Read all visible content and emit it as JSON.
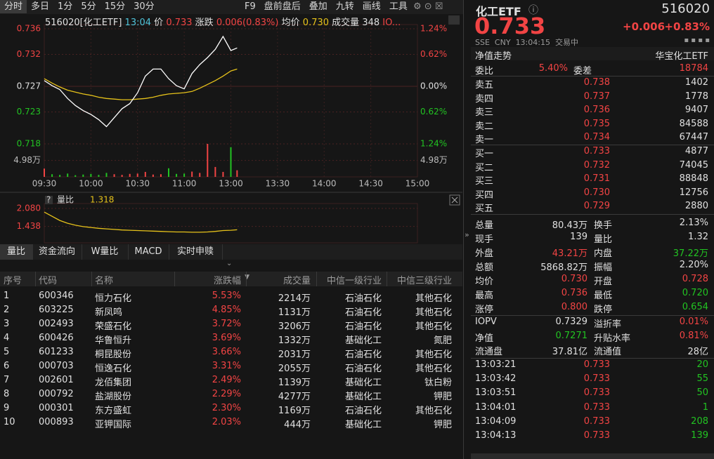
{
  "toolbar": {
    "periods": [
      "分时",
      "多日",
      "1分",
      "5分",
      "15分",
      "30分"
    ],
    "tools": [
      "F9",
      "盘前盘后",
      "叠加",
      "九转",
      "画线",
      "工具"
    ]
  },
  "quote_header": {
    "symbol": "516020[化工ETF]",
    "time": "13:04",
    "price_label": "价",
    "price": "0.733",
    "change_label": "涨跌",
    "change": "0.006(0.83%)",
    "avg_label": "均价",
    "avg": "0.730",
    "volume_label": "成交量",
    "volume": "348",
    "extra": "IO..."
  },
  "intraday": {
    "times": [
      "09:30",
      "09:35",
      "09:40",
      "09:45",
      "09:50",
      "09:55",
      "10:00",
      "10:05",
      "10:10",
      "10:15",
      "10:20",
      "10:25",
      "10:30",
      "10:35",
      "10:40",
      "10:45",
      "10:50",
      "10:55",
      "11:00",
      "11:05",
      "11:10",
      "11:15",
      "11:20",
      "11:25",
      "11:30",
      "13:04"
    ],
    "price": [
      0.7279,
      0.7271,
      0.7265,
      0.7251,
      0.724,
      0.7232,
      0.7226,
      0.7218,
      0.7207,
      0.7221,
      0.7235,
      0.7243,
      0.726,
      0.7286,
      0.7297,
      0.7297,
      0.7282,
      0.7271,
      0.7266,
      0.729,
      0.7304,
      0.7315,
      0.7328,
      0.7348,
      0.7326,
      0.733
    ],
    "avg": [
      0.7282,
      0.7275,
      0.7269,
      0.7264,
      0.7261,
      0.7258,
      0.7256,
      0.7253,
      0.7251,
      0.725,
      0.7249,
      0.7249,
      0.725,
      0.7251,
      0.7253,
      0.7256,
      0.7258,
      0.7259,
      0.726,
      0.7262,
      0.7267,
      0.7273,
      0.7279,
      0.7286,
      0.7294,
      0.7297
    ],
    "volume": [
      2.5,
      0.8,
      0.6,
      1.0,
      0.5,
      0.7,
      0.9,
      0.6,
      1.2,
      0.8,
      0.6,
      0.9,
      1.0,
      1.5,
      0.7,
      0.8,
      2.6,
      0.9,
      1.0,
      1.6,
      1.2,
      10.0,
      3.0,
      1.5,
      9.0,
      2.0
    ],
    "price_color": "#ffffff",
    "avg_color": "#e6c21a",
    "ylim": [
      0.718,
      0.736
    ],
    "yticks": [
      0.736,
      0.732,
      0.727,
      0.723,
      0.718
    ],
    "pct_ticks": [
      "1.24%",
      "0.62%",
      "0.00%",
      "0.62%",
      "1.24%"
    ],
    "volume_ylim": [
      0,
      10
    ],
    "volume_tick": {
      "value": 4.98,
      "label": "4.98万"
    },
    "xticks": [
      "09:30",
      "10:00",
      "10:30",
      "11:00",
      "13:00",
      "13:30",
      "14:00",
      "14:30",
      "15:00"
    ]
  },
  "ratio": {
    "help": "?",
    "label": "量比",
    "value": "1.318",
    "color": "#e6c21a",
    "values": [
      1.95,
      1.8,
      1.65,
      1.55,
      1.48,
      1.43,
      1.4,
      1.37,
      1.35,
      1.33,
      1.31,
      1.3,
      1.29,
      1.28,
      1.27,
      1.26,
      1.25,
      1.24,
      1.24,
      1.23,
      1.23,
      1.24,
      1.26,
      1.29,
      1.3,
      1.318
    ],
    "ylim": [
      0.85,
      2.08
    ],
    "yticks": [
      {
        "value": 2.08,
        "label": "2.080"
      },
      {
        "value": 1.438,
        "label": "1.438"
      }
    ]
  },
  "tabs": [
    "量比",
    "资金流向",
    "W量比",
    "MACD",
    "实时申赎"
  ],
  "table": {
    "headers": [
      "序号",
      "代码",
      "名称",
      "涨跌幅",
      "成交量",
      "中信一级行业",
      "中信三级行业"
    ],
    "rows": [
      [
        "1",
        "600346",
        "恒力石化",
        "5.53%",
        "2214万",
        "石油石化",
        "其他石化"
      ],
      [
        "2",
        "603225",
        "新凤鸣",
        "4.85%",
        "1131万",
        "石油石化",
        "其他石化"
      ],
      [
        "3",
        "002493",
        "荣盛石化",
        "3.72%",
        "3206万",
        "石油石化",
        "其他石化"
      ],
      [
        "4",
        "600426",
        "华鲁恒升",
        "3.69%",
        "1332万",
        "基础化工",
        "氮肥"
      ],
      [
        "5",
        "601233",
        "桐昆股份",
        "3.66%",
        "2031万",
        "石油石化",
        "其他石化"
      ],
      [
        "6",
        "000703",
        "恒逸石化",
        "3.31%",
        "2055万",
        "石油石化",
        "其他石化"
      ],
      [
        "7",
        "002601",
        "龙佰集团",
        "2.49%",
        "1139万",
        "基础化工",
        "钛白粉"
      ],
      [
        "8",
        "000792",
        "盐湖股份",
        "2.29%",
        "4277万",
        "基础化工",
        "钾肥"
      ],
      [
        "9",
        "000301",
        "东方盛虹",
        "2.30%",
        "1169万",
        "石油石化",
        "其他石化"
      ],
      [
        "10",
        "000893",
        "亚钾国际",
        "2.03%",
        "444万",
        "基础化工",
        "钾肥"
      ]
    ]
  },
  "quote": {
    "name": "化工ETF",
    "code": "516020",
    "price": "0.733",
    "change": "+0.006",
    "change_pct": "+0.83%",
    "meta": [
      "SSE",
      "CNY",
      "13:04:15",
      "交易中"
    ],
    "nav_link": "净值走势",
    "fund": "华宝化工ETF",
    "order_ratio": [
      "委比",
      "5.40%",
      "委差",
      "18784"
    ],
    "asks": [
      [
        "卖五",
        "0.738",
        "1402"
      ],
      [
        "卖四",
        "0.737",
        "1778"
      ],
      [
        "卖三",
        "0.736",
        "9407"
      ],
      [
        "卖二",
        "0.735",
        "84588"
      ],
      [
        "卖一",
        "0.734",
        "67447"
      ]
    ],
    "bids": [
      [
        "买一",
        "0.733",
        "4877"
      ],
      [
        "买二",
        "0.732",
        "74045"
      ],
      [
        "买三",
        "0.731",
        "88848"
      ],
      [
        "买四",
        "0.730",
        "12756"
      ],
      [
        "买五",
        "0.729",
        "2880"
      ]
    ],
    "stats": [
      [
        "总量",
        "80.43万",
        "换手",
        "2.13%"
      ],
      [
        "现手",
        "139",
        "量比",
        "1.32"
      ],
      [
        "外盘",
        "43.21万",
        "内盘",
        "37.22万"
      ],
      [
        "总额",
        "5868.82万",
        "振幅",
        "2.20%"
      ],
      [
        "均价",
        "0.730",
        "开盘",
        "0.728"
      ],
      [
        "最高",
        "0.736",
        "最低",
        "0.720"
      ],
      [
        "涨停",
        "0.800",
        "跌停",
        "0.654"
      ]
    ],
    "iopv": [
      [
        "IOPV",
        "0.7329",
        "溢折率",
        "0.01%"
      ],
      [
        "净值",
        "0.7271",
        "升贴水率",
        "0.81%"
      ],
      [
        "流通盘",
        "37.81亿",
        "流通值",
        "28亿"
      ]
    ],
    "ticks": [
      [
        "13:03:21",
        "0.733",
        "20"
      ],
      [
        "13:03:42",
        "0.733",
        "55"
      ],
      [
        "13:03:51",
        "0.733",
        "50"
      ],
      [
        "13:04:01",
        "0.733",
        "1"
      ],
      [
        "13:04:09",
        "0.733",
        "208"
      ],
      [
        "13:04:13",
        "0.733",
        "139"
      ]
    ]
  }
}
